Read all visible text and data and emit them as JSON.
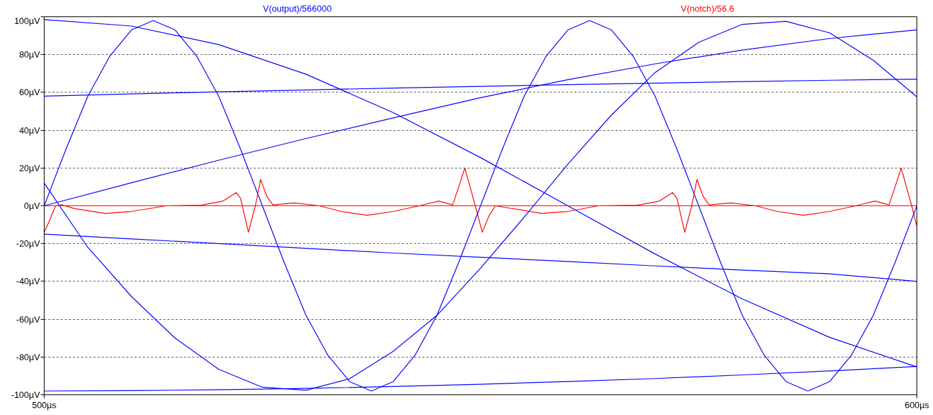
{
  "chart_data": {
    "type": "line",
    "xlim": [
      500,
      600
    ],
    "ylim": [
      -100,
      100
    ],
    "xticks": [
      {
        "value": 500,
        "label": "500µs"
      },
      {
        "value": 600,
        "label": "600µs"
      }
    ],
    "yticks": [
      {
        "value": -100,
        "label": "-100µV"
      },
      {
        "value": -80,
        "label": "-80µV"
      },
      {
        "value": -60,
        "label": "-60µV"
      },
      {
        "value": -40,
        "label": "-40µV"
      },
      {
        "value": -20,
        "label": "-20µV"
      },
      {
        "value": 0,
        "label": "0µV"
      },
      {
        "value": 20,
        "label": "20µV"
      },
      {
        "value": 40,
        "label": "40µV"
      },
      {
        "value": 60,
        "label": "60µV"
      },
      {
        "value": 80,
        "label": "80µV"
      },
      {
        "value": 100,
        "label": "100µV"
      }
    ],
    "grid": "y",
    "line_style": "solid",
    "marker": "none",
    "series": [
      {
        "name": "V(output)/566000",
        "color": "#0000ff",
        "x": [
          500,
          502.5,
          505,
          507.5,
          510,
          512.5,
          515,
          517.5,
          520,
          522.5,
          525,
          527.5,
          530,
          532.5,
          535,
          537.5,
          540,
          542.5,
          545,
          547.5,
          550,
          552.5,
          555,
          557.5,
          560,
          562.5,
          565,
          567.5,
          570,
          572.5,
          575,
          577.5,
          580,
          582.5,
          585,
          587.5,
          590,
          592.5,
          595,
          597.5,
          600
        ],
        "values": [
          0,
          30,
          58,
          79,
          93,
          98,
          93,
          79,
          58,
          30,
          0,
          -30,
          -58,
          -79,
          -93,
          -98,
          -93,
          -79,
          -58,
          -30,
          0,
          30,
          58,
          79,
          93,
          98,
          93,
          79,
          58,
          30,
          0,
          -30,
          -58,
          -79,
          -93,
          -98,
          -93,
          -79,
          -58,
          -30,
          0
        ]
      },
      {
        "color": "#0000ff",
        "x": [
          500,
          505,
          510,
          515,
          520,
          525,
          530,
          535,
          540,
          545,
          550,
          555,
          560,
          565,
          570,
          575,
          580,
          585,
          590,
          595,
          600
        ],
        "values": [
          12,
          -22,
          -48,
          -70,
          -86.5,
          -96,
          -97.6,
          -91.5,
          -77,
          -58,
          -33,
          -6,
          22,
          48,
          70.5,
          86.5,
          96,
          97.6,
          91.5,
          77,
          57.6
        ]
      },
      {
        "color": "#0000ff",
        "x": [
          500,
          510,
          520,
          530,
          540,
          550,
          560,
          570,
          580,
          590,
          600
        ],
        "values": [
          98.5,
          95.1,
          85.3,
          69.6,
          49.3,
          25.5,
          0,
          -25.5,
          -49.3,
          -69.6,
          -85.3
        ]
      },
      {
        "color": "#0000ff",
        "x": [
          500,
          510,
          520,
          530,
          540,
          550,
          560,
          570,
          580,
          590,
          600
        ],
        "values": [
          0,
          12.2,
          24.1,
          35.6,
          46.5,
          57.2,
          66.7,
          75.1,
          82.4,
          88.5,
          93.1
        ]
      },
      {
        "color": "#0000ff",
        "x": [
          500,
          510,
          520,
          530,
          540,
          550,
          560,
          570,
          580,
          590,
          600
        ],
        "values": [
          58,
          59.2,
          60.3,
          61.3,
          62.3,
          63.2,
          64.1,
          64.9,
          65.7,
          66.4,
          67
        ]
      },
      {
        "color": "#0000ff",
        "x": [
          500,
          510,
          520,
          530,
          540,
          550,
          560,
          570,
          580,
          590,
          600
        ],
        "values": [
          -15,
          -17.5,
          -20,
          -22.5,
          -25,
          -27.2,
          -29.5,
          -31.8,
          -34,
          -36,
          -40
        ]
      },
      {
        "color": "#0000ff",
        "x": [
          500,
          510,
          520,
          530,
          540,
          550,
          560,
          570,
          580,
          590,
          600
        ],
        "values": [
          -98,
          -97.8,
          -97.3,
          -96.6,
          -95.6,
          -94.4,
          -93,
          -91.4,
          -89.5,
          -87.4,
          -85
        ]
      },
      {
        "color": "#ff0000",
        "x": [
          500,
          600
        ],
        "values": [
          0,
          0
        ]
      },
      {
        "name": "V(notch)/56.6",
        "color": "#ff0000",
        "x": [
          500,
          500.6,
          501.3,
          502,
          503.5,
          507,
          510,
          514,
          518,
          520.5,
          522,
          522.5,
          523.4,
          524.2,
          524.8,
          525.5,
          526.2,
          528.7,
          531.5,
          534,
          537,
          540,
          543,
          545.2,
          546.8,
          547.5,
          548.2,
          548.8,
          549.4,
          550.2,
          551,
          551.7,
          553,
          557,
          560,
          563.5,
          568,
          570.5,
          572,
          572.5,
          573.4,
          574.2,
          574.8,
          575.5,
          576.2,
          578.7,
          581.5,
          584,
          587,
          590,
          593,
          595.2,
          596.8,
          597.5,
          598.2,
          598.8,
          599.4,
          600
        ],
        "values": [
          -14,
          -8,
          0,
          0.5,
          -1.5,
          -4,
          -3,
          0,
          0.3,
          2.5,
          7,
          4,
          -14,
          0,
          14,
          5,
          0.5,
          1.5,
          0,
          -3,
          -5,
          -3,
          0,
          2.5,
          0.5,
          10,
          20,
          10,
          0,
          -14,
          -5,
          0,
          -1,
          -4,
          -3,
          0,
          0.3,
          2.5,
          7,
          4,
          -14,
          0,
          14,
          5,
          0.5,
          1.5,
          0,
          -3,
          -5,
          -3,
          0,
          2.5,
          0.5,
          10,
          20,
          10,
          0,
          -11
        ]
      }
    ]
  }
}
